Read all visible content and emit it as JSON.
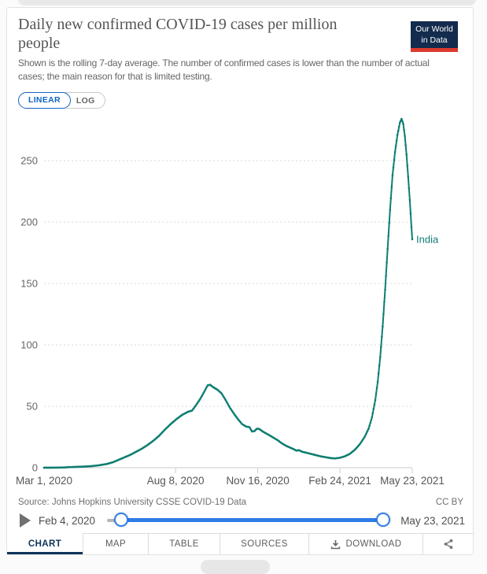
{
  "header": {
    "title": "Daily new confirmed COVID-19 cases per million people",
    "subtitle": "Shown is the rolling 7-day average. The number of confirmed cases is lower than the number of actual cases; the main reason for that is limited testing.",
    "logo": {
      "line1": "Our World",
      "line2": "in Data",
      "bg_color": "#132c4e",
      "accent_color": "#dc392d"
    }
  },
  "controls": {
    "linear_label": "LINEAR",
    "log_label": "LOG",
    "active_scale": "LINEAR"
  },
  "chart_data": {
    "type": "line",
    "title": "Daily new confirmed COVID-19 cases per million people",
    "x_range": [
      "2020-03-01",
      "2021-05-23"
    ],
    "y_range": [
      0,
      290
    ],
    "grid": "horizontal-dashed",
    "legend_position": "end-of-line-label",
    "y_ticks": [
      0,
      50,
      100,
      150,
      200,
      250
    ],
    "x_ticks": [
      {
        "label": "Mar 1, 2020",
        "date": "2020-03-01"
      },
      {
        "label": "Aug 8, 2020",
        "date": "2020-08-08"
      },
      {
        "label": "Nov 16, 2020",
        "date": "2020-11-16"
      },
      {
        "label": "Feb 24, 2021",
        "date": "2021-02-24"
      },
      {
        "label": "May 23, 2021",
        "date": "2021-05-23"
      }
    ],
    "series": [
      {
        "name": "India",
        "color": "#0f7e72",
        "points": [
          [
            "2020-03-01",
            0.02
          ],
          [
            "2020-03-15",
            0.05
          ],
          [
            "2020-03-25",
            0.2
          ],
          [
            "2020-04-01",
            0.5
          ],
          [
            "2020-04-10",
            0.7
          ],
          [
            "2020-04-19",
            0.95
          ],
          [
            "2020-04-28",
            1.3
          ],
          [
            "2020-05-07",
            2.0
          ],
          [
            "2020-05-16",
            3.0
          ],
          [
            "2020-05-24",
            4.5
          ],
          [
            "2020-05-31",
            6.5
          ],
          [
            "2020-06-07",
            8.5
          ],
          [
            "2020-06-14",
            10.5
          ],
          [
            "2020-06-21",
            13
          ],
          [
            "2020-06-28",
            15.5
          ],
          [
            "2020-07-05",
            18.5
          ],
          [
            "2020-07-12",
            22
          ],
          [
            "2020-07-19",
            26
          ],
          [
            "2020-07-26",
            31
          ],
          [
            "2020-08-02",
            35.5
          ],
          [
            "2020-08-09",
            39.5
          ],
          [
            "2020-08-16",
            43
          ],
          [
            "2020-08-23",
            45.5
          ],
          [
            "2020-08-28",
            46.5
          ],
          [
            "2020-09-02",
            51
          ],
          [
            "2020-09-07",
            56
          ],
          [
            "2020-09-12",
            62
          ],
          [
            "2020-09-16",
            67
          ],
          [
            "2020-09-19",
            67.5
          ],
          [
            "2020-09-23",
            65.5
          ],
          [
            "2020-09-28",
            63.5
          ],
          [
            "2020-10-03",
            60.5
          ],
          [
            "2020-10-08",
            55
          ],
          [
            "2020-10-13",
            49
          ],
          [
            "2020-10-18",
            44
          ],
          [
            "2020-10-23",
            39.5
          ],
          [
            "2020-10-28",
            35.5
          ],
          [
            "2020-11-02",
            33.5
          ],
          [
            "2020-11-06",
            33
          ],
          [
            "2020-11-09",
            29.5
          ],
          [
            "2020-11-12",
            29.8
          ],
          [
            "2020-11-15",
            31.8
          ],
          [
            "2020-11-18",
            31.5
          ],
          [
            "2020-11-22",
            29.5
          ],
          [
            "2020-11-26",
            28
          ],
          [
            "2020-11-30",
            26.5
          ],
          [
            "2020-12-05",
            24.5
          ],
          [
            "2020-12-10",
            22.5
          ],
          [
            "2020-12-15",
            20
          ],
          [
            "2020-12-20",
            18
          ],
          [
            "2020-12-25",
            16.5
          ],
          [
            "2020-12-30",
            15
          ],
          [
            "2021-01-02",
            13.9
          ],
          [
            "2021-01-05",
            14.3
          ],
          [
            "2021-01-09",
            13
          ],
          [
            "2021-01-14",
            12.2
          ],
          [
            "2021-01-20",
            11.2
          ],
          [
            "2021-01-26",
            10.2
          ],
          [
            "2021-02-01",
            9.2
          ],
          [
            "2021-02-07",
            8.5
          ],
          [
            "2021-02-13",
            7.8
          ],
          [
            "2021-02-18",
            7.6
          ],
          [
            "2021-02-24",
            8.1
          ],
          [
            "2021-03-02",
            9.3
          ],
          [
            "2021-03-08",
            11.3
          ],
          [
            "2021-03-14",
            14.5
          ],
          [
            "2021-03-20",
            19
          ],
          [
            "2021-03-26",
            25
          ],
          [
            "2021-03-31",
            32
          ],
          [
            "2021-04-04",
            41
          ],
          [
            "2021-04-08",
            55
          ],
          [
            "2021-04-11",
            70
          ],
          [
            "2021-04-14",
            90
          ],
          [
            "2021-04-17",
            115
          ],
          [
            "2021-04-20",
            145
          ],
          [
            "2021-04-23",
            178
          ],
          [
            "2021-04-26",
            210
          ],
          [
            "2021-04-29",
            238
          ],
          [
            "2021-05-02",
            257
          ],
          [
            "2021-05-05",
            271
          ],
          [
            "2021-05-08",
            281
          ],
          [
            "2021-05-10",
            284
          ],
          [
            "2021-05-12",
            280
          ],
          [
            "2021-05-14",
            270
          ],
          [
            "2021-05-16",
            255
          ],
          [
            "2021-05-18",
            237
          ],
          [
            "2021-05-20",
            218
          ],
          [
            "2021-05-22",
            196
          ],
          [
            "2021-05-23",
            186
          ]
        ]
      }
    ]
  },
  "footer": {
    "source": "Source: Johns Hopkins University CSSE COVID-19 Data",
    "license": "CC BY",
    "timeline": {
      "start": "Feb 4, 2020",
      "end": "May 23, 2021"
    },
    "tabs": [
      {
        "label": "CHART"
      },
      {
        "label": "MAP"
      },
      {
        "label": "TABLE"
      },
      {
        "label": "SOURCES"
      },
      {
        "label": "DOWNLOAD"
      },
      {
        "label": ""
      }
    ]
  },
  "colors": {
    "line": "#0f7e72",
    "slider_track": "#2e7ce8",
    "linear_active": "#1163c6",
    "tab_active": "#10335a",
    "grid": "#dadada",
    "axis": "#c8c8c8"
  }
}
